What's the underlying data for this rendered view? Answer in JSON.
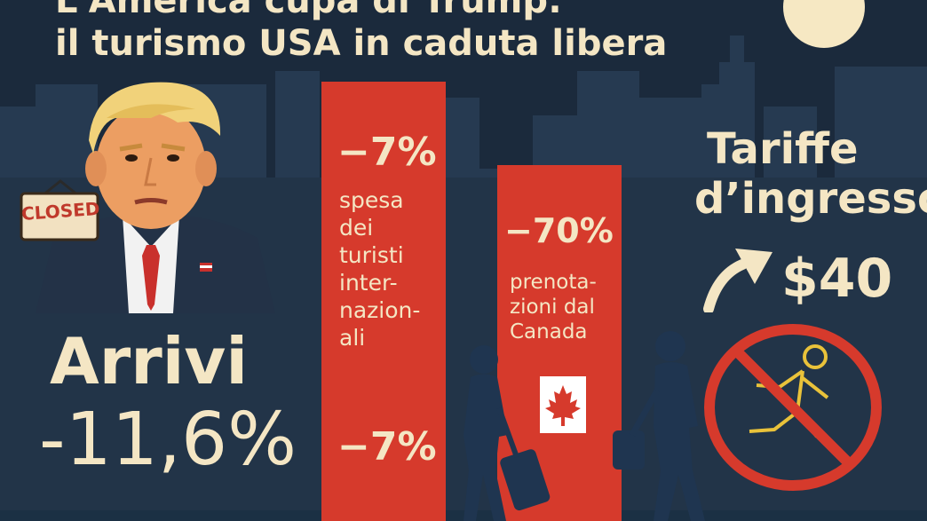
{
  "title": {
    "line1": "L'America cupa di Trump:",
    "line2": "il turismo USA in caduta libera"
  },
  "left": {
    "sign_label": "CLOSED",
    "arrivals_label": "Arrivi",
    "arrivals_value": "-11,6%"
  },
  "bar1": {
    "value": "−7%",
    "lines": [
      "spesa",
      "dei",
      "turisti",
      "inter-",
      "nazion-",
      "ali"
    ],
    "bottom_value": "−7%"
  },
  "bar2": {
    "value": "−70%",
    "lines": [
      "prenota-",
      "zioni dal",
      "Canada"
    ]
  },
  "right": {
    "line1": "Tariffe",
    "line2": "d’ingresso",
    "price": "$40"
  },
  "colors": {
    "background": "#1b2a3c",
    "bar_red": "#d63a2c",
    "cream": "#f4e6c4",
    "moon": "#f6e8c3",
    "no_sign_red": "#d63a2c",
    "runner_yellow": "#e9c23a"
  },
  "icons": {
    "moon": "moon-icon",
    "up_arrow": "trend-up-arrow-icon",
    "no_entry": "no-entry-runner-icon",
    "flag": "canada-flag-icon"
  }
}
